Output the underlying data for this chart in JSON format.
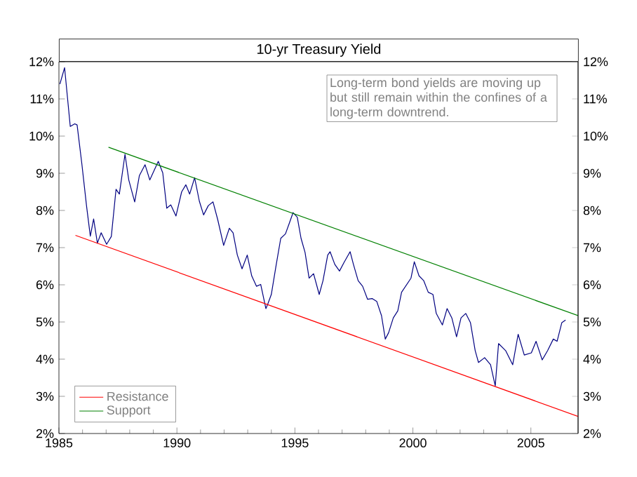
{
  "chart_data": {
    "type": "line",
    "title": "10-yr Treasury Yield",
    "annotations": [
      "Long-term bond yields are moving up but still remain within the confines of a long-term downtrend."
    ],
    "xlim": [
      1985,
      2007
    ],
    "xticks": [
      1985,
      1990,
      1995,
      2000,
      2005
    ],
    "ylim": [
      2,
      12
    ],
    "yticks": [
      {
        "value": 2,
        "label": "2%"
      },
      {
        "value": 3,
        "label": "3%"
      },
      {
        "value": 4,
        "label": "4%"
      },
      {
        "value": 5,
        "label": "5%"
      },
      {
        "value": 6,
        "label": "6%"
      },
      {
        "value": 7,
        "label": "7%"
      },
      {
        "value": 8,
        "label": "8%"
      },
      {
        "value": 9,
        "label": "9%"
      },
      {
        "value": 10,
        "label": "10%"
      },
      {
        "value": 11,
        "label": "11%"
      },
      {
        "value": 12,
        "label": "12%"
      }
    ],
    "y2lim": [
      2,
      12
    ],
    "y2ticks": [
      {
        "value": 2,
        "label": "2%"
      },
      {
        "value": 3,
        "label": "3%"
      },
      {
        "value": 4,
        "label": "4%"
      },
      {
        "value": 5,
        "label": "5%"
      },
      {
        "value": 6,
        "label": "6%"
      },
      {
        "value": 7,
        "label": "7%"
      },
      {
        "value": 8,
        "label": "8%"
      },
      {
        "value": 9,
        "label": "9%"
      },
      {
        "value": 10,
        "label": "10%"
      },
      {
        "value": 11,
        "label": "11%"
      },
      {
        "value": 12,
        "label": "12%"
      }
    ],
    "grid": false,
    "legend": "bottom left",
    "marker": "none",
    "line_style": "solid",
    "series": [
      {
        "color": "#000080",
        "x": [
          1985.04,
          1985.24,
          1985.48,
          1985.67,
          1985.77,
          1985.97,
          1986.17,
          1986.33,
          1986.47,
          1986.63,
          1986.79,
          1987.02,
          1987.22,
          1987.42,
          1987.56,
          1987.8,
          1987.96,
          1988.21,
          1988.41,
          1988.65,
          1988.85,
          1989.21,
          1989.4,
          1989.57,
          1989.74,
          1989.96,
          1990.2,
          1990.38,
          1990.54,
          1990.75,
          1990.95,
          1991.13,
          1991.33,
          1991.53,
          1991.73,
          1991.98,
          1992.22,
          1992.38,
          1992.56,
          1992.76,
          1992.98,
          1993.17,
          1993.37,
          1993.55,
          1993.77,
          1993.85,
          1994.0,
          1994.21,
          1994.4,
          1994.6,
          1994.76,
          1994.92,
          1995.1,
          1995.26,
          1995.43,
          1995.6,
          1995.79,
          1996.03,
          1996.19,
          1996.39,
          1996.49,
          1996.69,
          1996.89,
          1997.08,
          1997.34,
          1997.48,
          1997.68,
          1997.87,
          1998.08,
          1998.27,
          1998.47,
          1998.67,
          1998.83,
          1998.97,
          1999.17,
          1999.36,
          1999.52,
          1999.72,
          1999.92,
          2000.06,
          2000.26,
          2000.46,
          2000.65,
          2000.85,
          2000.99,
          2001.25,
          2001.45,
          2001.65,
          2001.85,
          2002.04,
          2002.24,
          2002.44,
          2002.64,
          2002.78,
          2003.04,
          2003.29,
          2003.49,
          2003.63,
          2003.93,
          2004.23,
          2004.46,
          2004.72,
          2005.02,
          2005.22,
          2005.48,
          2005.71,
          2005.95,
          2006.11,
          2006.31,
          2006.47
        ],
        "values": [
          11.4,
          11.84,
          10.26,
          10.33,
          10.3,
          9.26,
          8.12,
          7.31,
          7.77,
          7.12,
          7.4,
          7.09,
          7.3,
          8.57,
          8.44,
          9.51,
          8.82,
          8.23,
          8.94,
          9.23,
          8.82,
          9.32,
          9.01,
          8.06,
          8.15,
          7.85,
          8.5,
          8.69,
          8.44,
          8.88,
          8.25,
          7.88,
          8.13,
          8.23,
          7.75,
          7.06,
          7.52,
          7.4,
          6.8,
          6.43,
          6.8,
          6.24,
          5.96,
          6.01,
          5.36,
          5.48,
          5.74,
          6.55,
          7.25,
          7.37,
          7.65,
          7.94,
          7.82,
          7.25,
          6.87,
          6.18,
          6.3,
          5.74,
          6.11,
          6.8,
          6.89,
          6.55,
          6.37,
          6.6,
          6.89,
          6.55,
          6.11,
          5.96,
          5.61,
          5.63,
          5.55,
          5.17,
          4.54,
          4.71,
          5.11,
          5.3,
          5.8,
          5.99,
          6.18,
          6.62,
          6.24,
          6.11,
          5.8,
          5.74,
          5.23,
          4.92,
          5.36,
          5.11,
          4.6,
          5.11,
          5.23,
          4.98,
          4.23,
          3.91,
          4.04,
          3.85,
          3.28,
          4.42,
          4.23,
          3.85,
          4.67,
          4.11,
          4.17,
          4.48,
          3.98,
          4.23,
          4.54,
          4.48,
          4.98,
          5.05
        ]
      },
      {
        "name": "Resistance",
        "color": "#ff0000",
        "x": [
          1985.7,
          2007
        ],
        "values": [
          7.33,
          2.46
        ]
      },
      {
        "name": "Support",
        "color": "#008000",
        "x": [
          1987.1,
          2007
        ],
        "values": [
          9.7,
          5.17
        ]
      }
    ]
  }
}
